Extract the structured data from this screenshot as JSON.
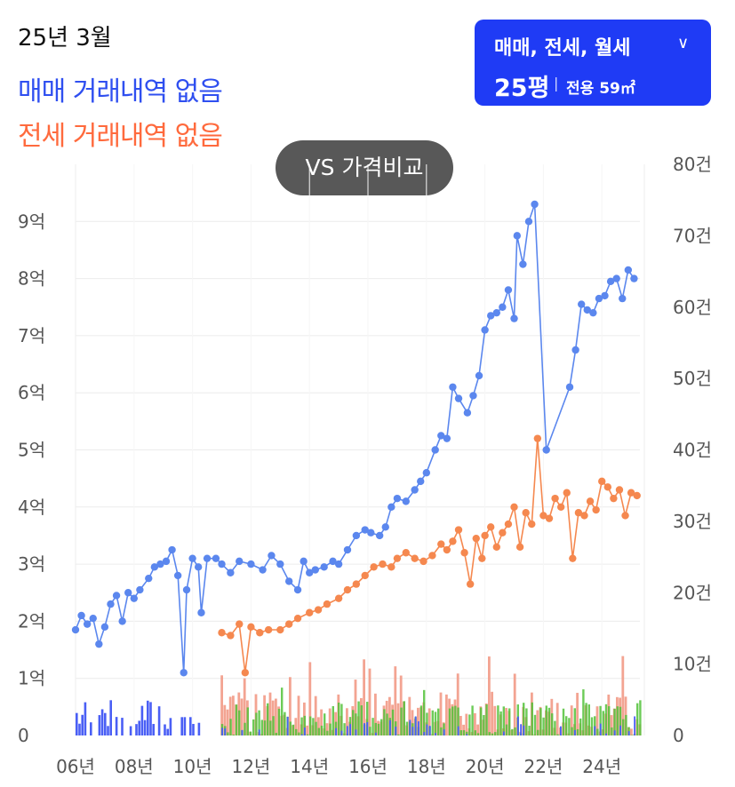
{
  "header": {
    "period": "25년 3월",
    "sale_status": "매매 거래내역 없음",
    "jeonse_status": "전세 거래내역 없음"
  },
  "filter": {
    "types": "매매, 전세, 월세",
    "chevron_icon": "chevron-down-icon",
    "size": "25평",
    "separator": "|",
    "area": "전용 59㎡"
  },
  "compare_button": {
    "label": "VS 가격비교"
  },
  "colors": {
    "sale": "#5b87ee",
    "jeonse": "#f5884f",
    "sale_volume": "#4a5ff5",
    "jeonse_volume": "#f29a86",
    "rent_volume": "#52c23a",
    "accent": "#1f3bf5"
  },
  "chart_data": {
    "type": "line",
    "x_ticks": [
      "06년",
      "08년",
      "10년",
      "12년",
      "14년",
      "16년",
      "18년",
      "20년",
      "22년",
      "24년"
    ],
    "y_left_ticks": [
      "0",
      "1억",
      "2억",
      "3억",
      "4억",
      "5억",
      "6억",
      "7억",
      "8억",
      "9억"
    ],
    "y_left_range": [
      0,
      10
    ],
    "y_right_ticks": [
      "0",
      "10건",
      "20건",
      "30건",
      "40건",
      "50건",
      "60건",
      "70건",
      "80건"
    ],
    "y_right_range": [
      0,
      80
    ],
    "x_range": [
      2006.0,
      2025.3
    ],
    "grid": true,
    "series": [
      {
        "key": "sale",
        "points": [
          [
            2006.0,
            1.85
          ],
          [
            2006.2,
            2.1
          ],
          [
            2006.4,
            1.95
          ],
          [
            2006.6,
            2.05
          ],
          [
            2006.8,
            1.6
          ],
          [
            2007.0,
            1.9
          ],
          [
            2007.2,
            2.3
          ],
          [
            2007.4,
            2.45
          ],
          [
            2007.6,
            2.0
          ],
          [
            2007.8,
            2.5
          ],
          [
            2008.0,
            2.4
          ],
          [
            2008.2,
            2.55
          ],
          [
            2008.5,
            2.75
          ],
          [
            2008.7,
            2.95
          ],
          [
            2008.9,
            3.0
          ],
          [
            2009.1,
            3.05
          ],
          [
            2009.3,
            3.25
          ],
          [
            2009.5,
            2.8
          ],
          [
            2009.7,
            1.1
          ],
          [
            2009.8,
            2.55
          ],
          [
            2010.0,
            3.1
          ],
          [
            2010.2,
            2.95
          ],
          [
            2010.3,
            2.15
          ],
          [
            2010.5,
            3.1
          ],
          [
            2010.8,
            3.1
          ],
          [
            2011.0,
            3.0
          ],
          [
            2011.3,
            2.85
          ],
          [
            2011.6,
            3.05
          ],
          [
            2012.0,
            3.0
          ],
          [
            2012.4,
            2.9
          ],
          [
            2012.7,
            3.15
          ],
          [
            2013.0,
            3.0
          ],
          [
            2013.3,
            2.7
          ],
          [
            2013.6,
            2.55
          ],
          [
            2013.8,
            3.05
          ],
          [
            2014.0,
            2.85
          ],
          [
            2014.2,
            2.9
          ],
          [
            2014.5,
            2.95
          ],
          [
            2014.8,
            3.05
          ],
          [
            2015.0,
            3.0
          ],
          [
            2015.3,
            3.25
          ],
          [
            2015.6,
            3.5
          ],
          [
            2015.9,
            3.6
          ],
          [
            2016.1,
            3.55
          ],
          [
            2016.4,
            3.5
          ],
          [
            2016.6,
            3.65
          ],
          [
            2016.8,
            4.0
          ],
          [
            2017.0,
            4.15
          ],
          [
            2017.3,
            4.1
          ],
          [
            2017.6,
            4.3
          ],
          [
            2017.8,
            4.45
          ],
          [
            2018.0,
            4.6
          ],
          [
            2018.3,
            5.0
          ],
          [
            2018.5,
            5.25
          ],
          [
            2018.7,
            5.2
          ],
          [
            2018.9,
            6.1
          ],
          [
            2019.1,
            5.9
          ],
          [
            2019.4,
            5.65
          ],
          [
            2019.6,
            5.95
          ],
          [
            2019.8,
            6.3
          ],
          [
            2020.0,
            7.1
          ],
          [
            2020.2,
            7.35
          ],
          [
            2020.4,
            7.4
          ],
          [
            2020.6,
            7.5
          ],
          [
            2020.8,
            7.8
          ],
          [
            2021.0,
            7.3
          ],
          [
            2021.1,
            8.75
          ],
          [
            2021.3,
            8.25
          ],
          [
            2021.5,
            9.0
          ],
          [
            2021.7,
            9.3
          ],
          [
            2022.1,
            5.0
          ],
          [
            2022.9,
            6.1
          ],
          [
            2023.1,
            6.75
          ],
          [
            2023.3,
            7.55
          ],
          [
            2023.5,
            7.45
          ],
          [
            2023.7,
            7.4
          ],
          [
            2023.9,
            7.65
          ],
          [
            2024.1,
            7.7
          ],
          [
            2024.3,
            7.95
          ],
          [
            2024.5,
            8.0
          ],
          [
            2024.7,
            7.65
          ],
          [
            2024.9,
            8.15
          ],
          [
            2025.1,
            8.0
          ]
        ]
      },
      {
        "key": "jeonse",
        "points": [
          [
            2011.0,
            1.8
          ],
          [
            2011.3,
            1.75
          ],
          [
            2011.6,
            1.95
          ],
          [
            2011.8,
            1.1
          ],
          [
            2012.0,
            1.9
          ],
          [
            2012.3,
            1.8
          ],
          [
            2012.6,
            1.85
          ],
          [
            2013.0,
            1.85
          ],
          [
            2013.3,
            1.95
          ],
          [
            2013.6,
            2.05
          ],
          [
            2014.0,
            2.15
          ],
          [
            2014.3,
            2.2
          ],
          [
            2014.6,
            2.3
          ],
          [
            2015.0,
            2.4
          ],
          [
            2015.3,
            2.55
          ],
          [
            2015.6,
            2.65
          ],
          [
            2015.9,
            2.8
          ],
          [
            2016.2,
            2.95
          ],
          [
            2016.5,
            3.0
          ],
          [
            2016.8,
            2.95
          ],
          [
            2017.0,
            3.1
          ],
          [
            2017.3,
            3.2
          ],
          [
            2017.6,
            3.1
          ],
          [
            2017.9,
            3.05
          ],
          [
            2018.2,
            3.15
          ],
          [
            2018.5,
            3.35
          ],
          [
            2018.7,
            3.25
          ],
          [
            2018.9,
            3.4
          ],
          [
            2019.1,
            3.6
          ],
          [
            2019.3,
            3.2
          ],
          [
            2019.5,
            2.65
          ],
          [
            2019.7,
            3.45
          ],
          [
            2019.9,
            3.1
          ],
          [
            2020.0,
            3.5
          ],
          [
            2020.2,
            3.65
          ],
          [
            2020.4,
            3.3
          ],
          [
            2020.6,
            3.55
          ],
          [
            2020.8,
            3.7
          ],
          [
            2021.0,
            4.0
          ],
          [
            2021.2,
            3.3
          ],
          [
            2021.4,
            3.9
          ],
          [
            2021.6,
            3.7
          ],
          [
            2021.8,
            5.2
          ],
          [
            2022.0,
            3.85
          ],
          [
            2022.2,
            3.8
          ],
          [
            2022.4,
            4.15
          ],
          [
            2022.6,
            4.0
          ],
          [
            2022.8,
            4.25
          ],
          [
            2023.0,
            3.1
          ],
          [
            2023.2,
            3.9
          ],
          [
            2023.4,
            3.85
          ],
          [
            2023.6,
            4.1
          ],
          [
            2023.8,
            3.95
          ],
          [
            2024.0,
            4.45
          ],
          [
            2024.2,
            4.35
          ],
          [
            2024.4,
            4.15
          ],
          [
            2024.6,
            4.3
          ],
          [
            2024.8,
            3.85
          ],
          [
            2025.0,
            4.25
          ],
          [
            2025.2,
            4.2
          ]
        ]
      }
    ]
  }
}
